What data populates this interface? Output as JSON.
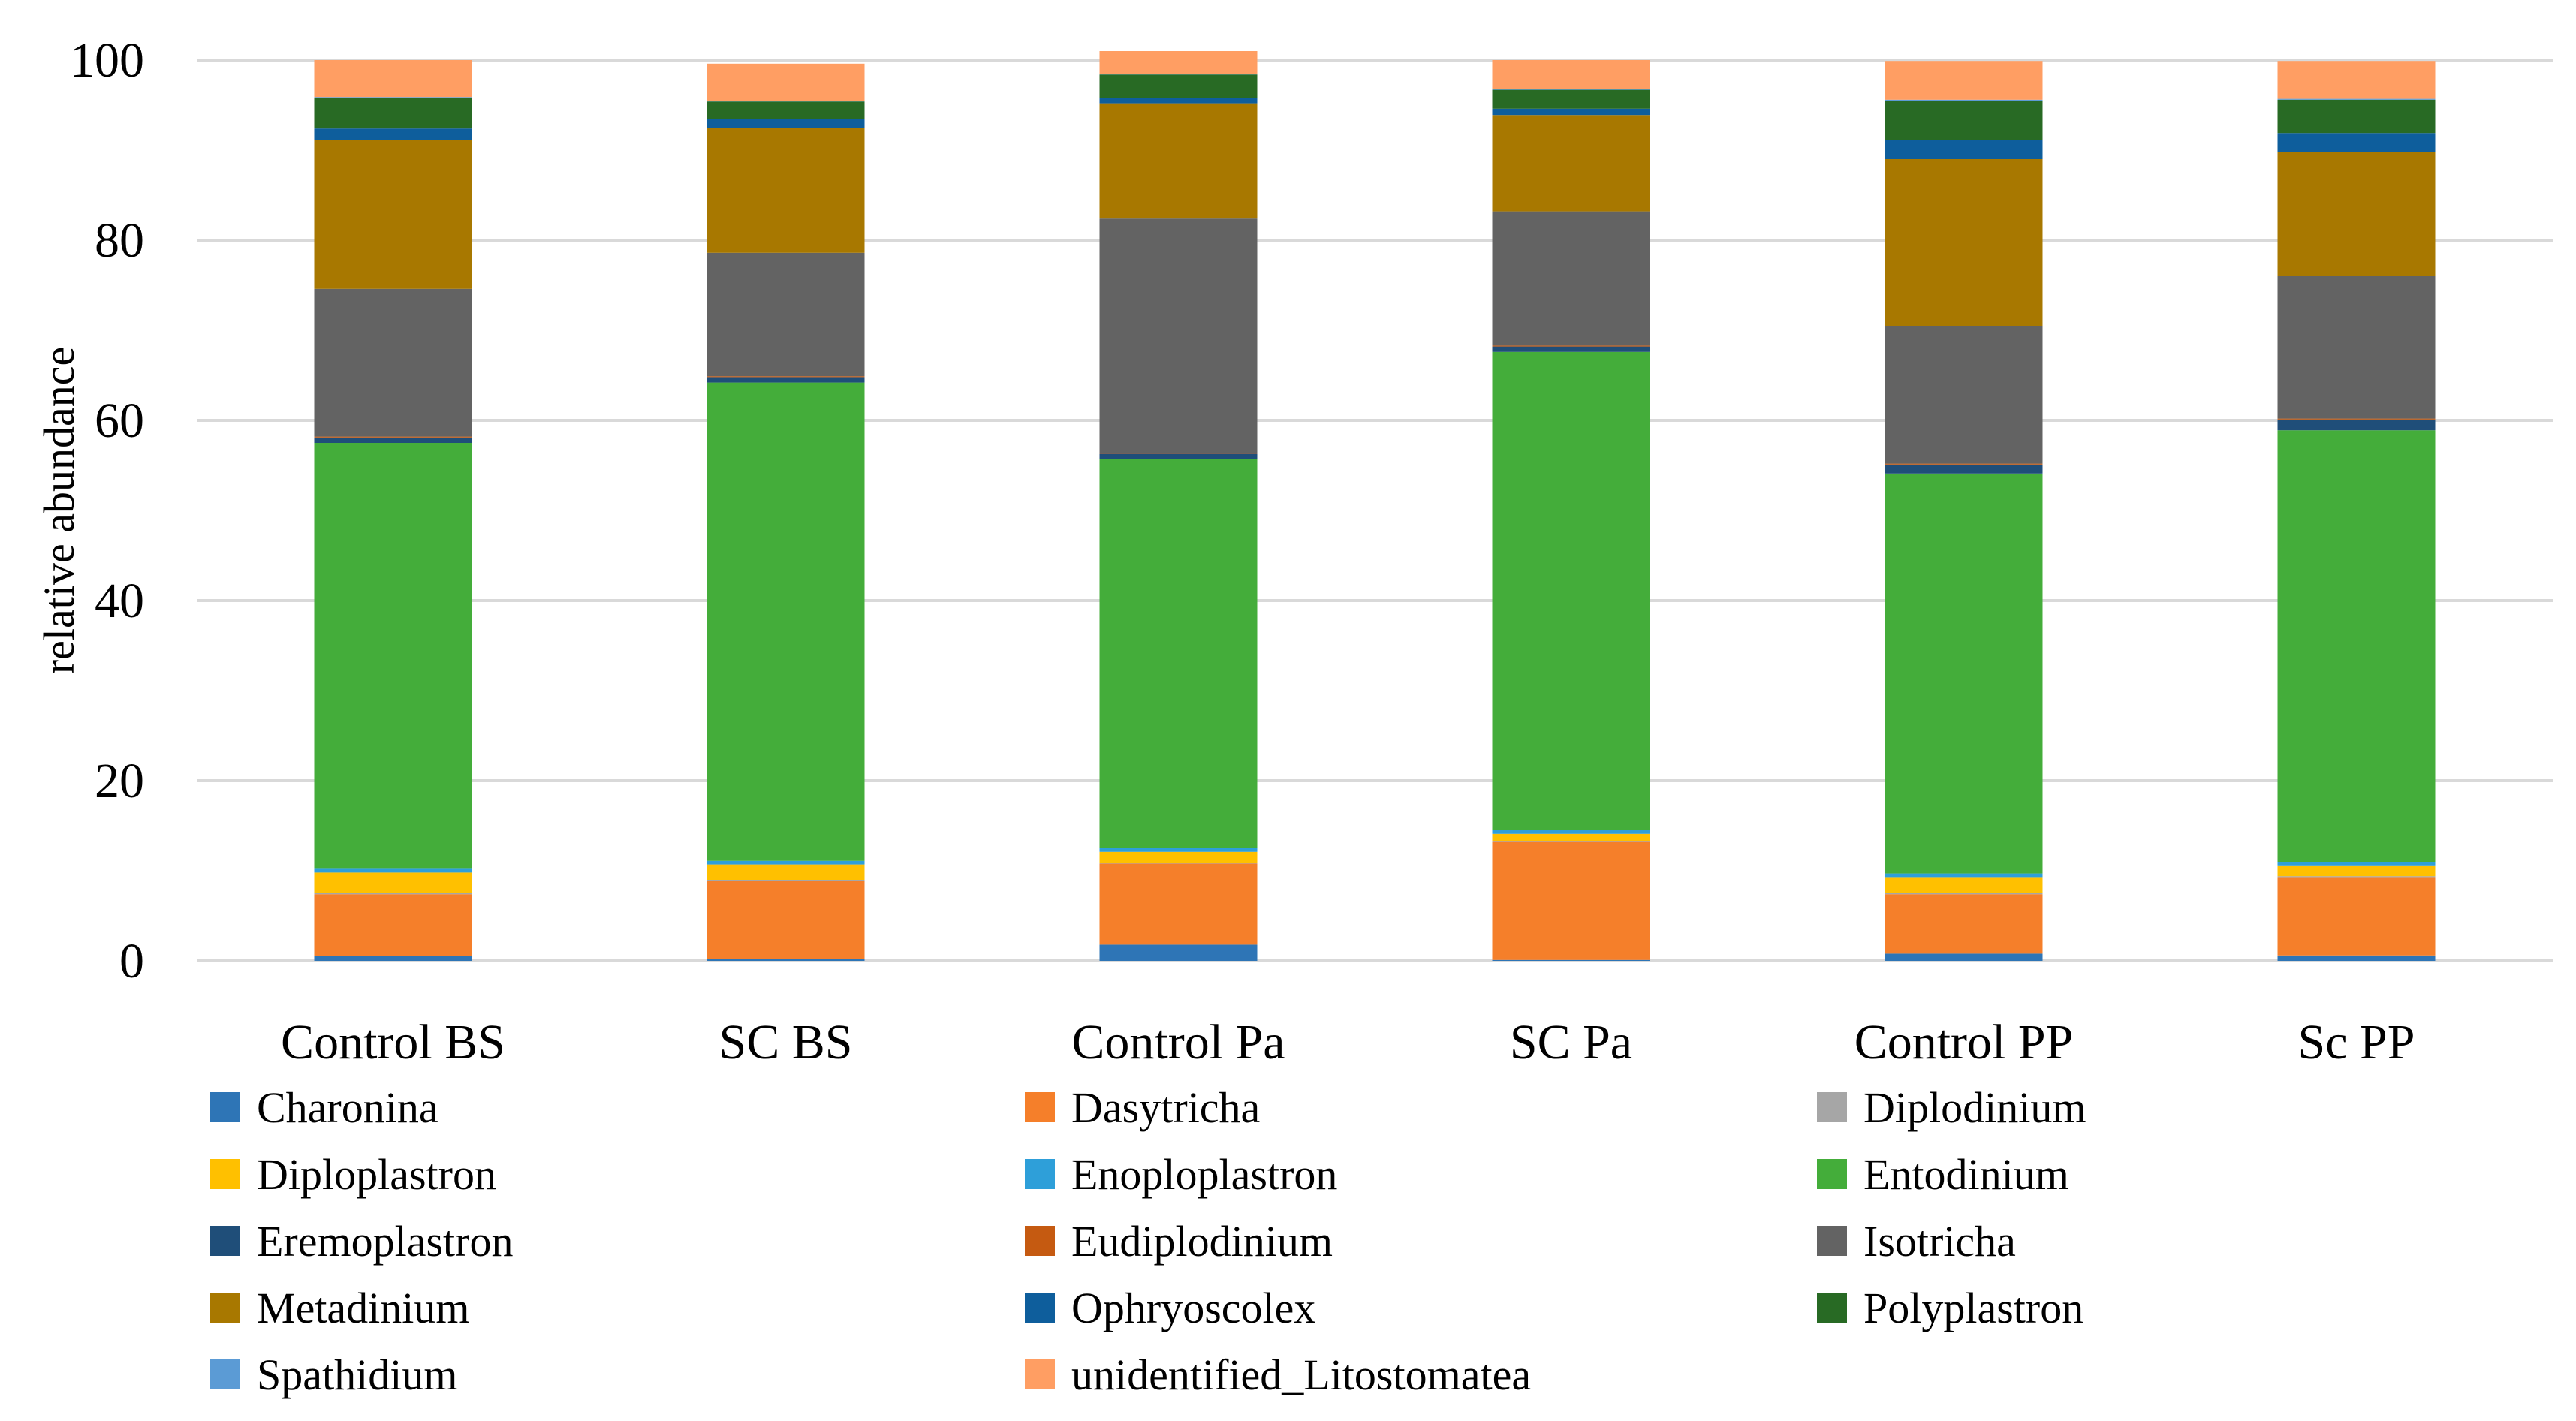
{
  "chart_data": {
    "type": "stacked-bar",
    "title": "",
    "xlabel": "",
    "ylabel": "relative abundance",
    "ylim": [
      0,
      100
    ],
    "yticks": [
      0,
      20,
      40,
      60,
      80,
      100
    ],
    "grid": true,
    "legend_position": "bottom",
    "categories": [
      "Control BS",
      "SC BS",
      "Control Pa",
      "SC Pa",
      "Control PP",
      "Sc PP"
    ],
    "series": [
      {
        "name": "Charonina",
        "color": "#2E75B6",
        "values": [
          0.5,
          0.2,
          1.8,
          0.1,
          0.8,
          0.6
        ]
      },
      {
        "name": "Dasytricha",
        "color": "#F57F2A",
        "values": [
          6.9,
          8.7,
          9.0,
          13.1,
          6.6,
          8.7
        ]
      },
      {
        "name": "Diplodinium",
        "color": "#A6A6A6",
        "values": [
          0.1,
          0.1,
          0.1,
          0.1,
          0.1,
          0.1
        ]
      },
      {
        "name": "Diploplastron",
        "color": "#FFC000",
        "values": [
          2.3,
          1.7,
          1.2,
          0.8,
          1.8,
          1.2
        ]
      },
      {
        "name": "Enoploplastron",
        "color": "#2E9FD9",
        "values": [
          0.5,
          0.4,
          0.4,
          0.4,
          0.4,
          0.4
        ]
      },
      {
        "name": "Entodinium",
        "color": "#44AD3A",
        "values": [
          47.2,
          53.1,
          43.2,
          53.1,
          44.4,
          47.9
        ]
      },
      {
        "name": "Eremoplastron",
        "color": "#1F4E79",
        "values": [
          0.6,
          0.6,
          0.6,
          0.6,
          1.0,
          1.2
        ]
      },
      {
        "name": "Eudiplodinium",
        "color": "#C55A11",
        "values": [
          0.1,
          0.1,
          0.1,
          0.1,
          0.1,
          0.1
        ]
      },
      {
        "name": "Isotricha",
        "color": "#636363",
        "values": [
          16.4,
          13.7,
          26.0,
          14.9,
          15.3,
          15.8
        ]
      },
      {
        "name": "Metadinium",
        "color": "#A87800",
        "values": [
          16.5,
          13.9,
          12.8,
          10.7,
          18.5,
          13.8
        ]
      },
      {
        "name": "Ophryoscolex",
        "color": "#0E5E9C",
        "values": [
          1.3,
          1.0,
          0.6,
          0.7,
          2.1,
          2.1
        ]
      },
      {
        "name": "Polyplastron",
        "color": "#286A24",
        "values": [
          3.4,
          1.9,
          2.6,
          2.1,
          4.4,
          3.7
        ]
      },
      {
        "name": "Spathidium",
        "color": "#5B9BD5",
        "values": [
          0.1,
          0.1,
          0.1,
          0.1,
          0.1,
          0.1
        ]
      },
      {
        "name": "unidentified_Litostomatea",
        "color": "#FF9E63",
        "values": [
          4.1,
          4.1,
          2.5,
          3.2,
          4.3,
          4.2
        ]
      }
    ]
  }
}
